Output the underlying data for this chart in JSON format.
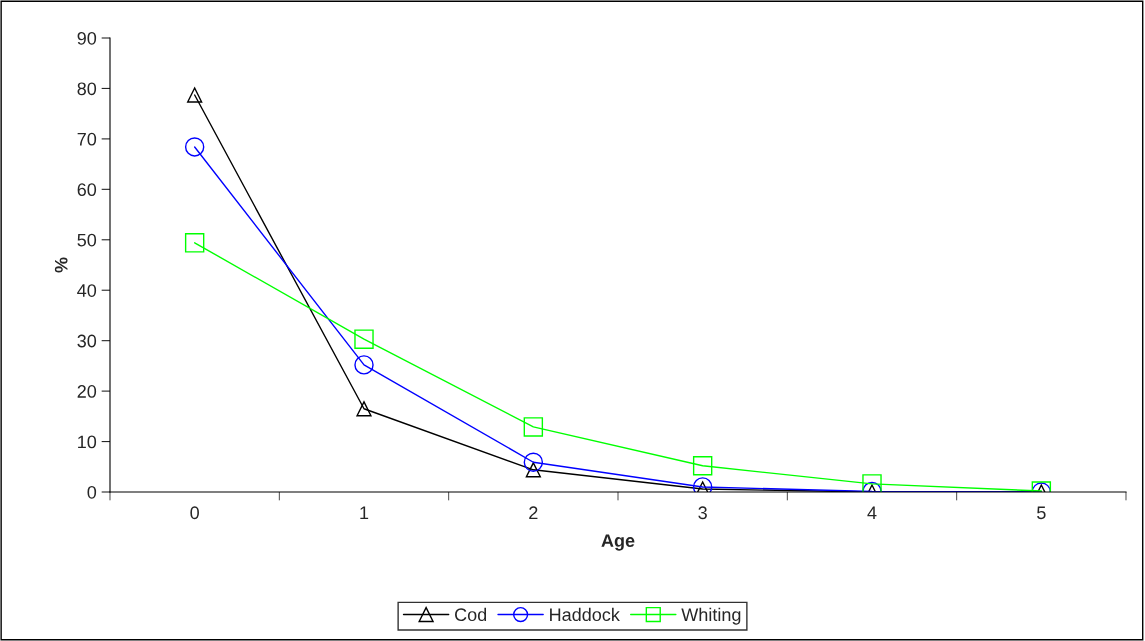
{
  "chart_data": {
    "type": "line",
    "xlabel": "Age",
    "ylabel": "%",
    "categories": [
      "0",
      "1",
      "2",
      "3",
      "4",
      "5"
    ],
    "series": [
      {
        "name": "Cod",
        "color": "#000000",
        "marker": "triangle",
        "values": [
          78.7,
          16.5,
          4.4,
          0.6,
          0,
          0
        ]
      },
      {
        "name": "Haddock",
        "color": "#0000ff",
        "marker": "circle",
        "values": [
          68.4,
          25.2,
          5.9,
          1.0,
          0.1,
          0
        ]
      },
      {
        "name": "Whiting",
        "color": "#00ff00",
        "marker": "square",
        "values": [
          49.4,
          30.3,
          12.9,
          5.2,
          1.6,
          0.2
        ]
      }
    ],
    "ylim": [
      0,
      90
    ],
    "yticks": [
      0,
      10,
      20,
      30,
      40,
      50,
      60,
      70,
      80,
      90
    ],
    "grid": false,
    "legend": "bottom"
  }
}
